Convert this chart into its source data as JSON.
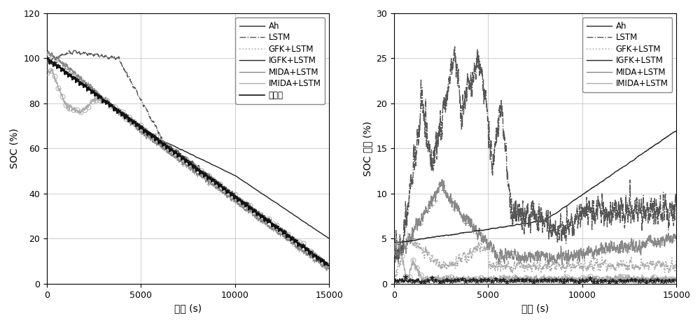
{
  "fig_width": 10.0,
  "fig_height": 4.62,
  "dpi": 100,
  "bg_color": "#ffffff",
  "xlabel": "时间 (s)",
  "left_ylabel": "SOC (%)",
  "right_ylabel": "SOC 误差 (%)",
  "left_ylim": [
    0,
    120
  ],
  "right_ylim": [
    0,
    30
  ],
  "left_yticks": [
    0,
    20,
    40,
    60,
    80,
    100,
    120
  ],
  "right_yticks": [
    0,
    5,
    10,
    15,
    20,
    25,
    30
  ],
  "xlim": [
    0,
    15000
  ],
  "xticks": [
    0,
    5000,
    10000,
    15000
  ],
  "legend_labels": [
    "Ah",
    "LSTM",
    "GFK+LSTM",
    "IGFK+LSTM",
    "MIDA+LSTM",
    "IMIDA+LSTM",
    "参考値"
  ],
  "colors": {
    "Ah": "#222222",
    "LSTM": "#555555",
    "GFK": "#aaaaaa",
    "IGFK": "#222222",
    "MIDA": "#888888",
    "IMIDA": "#aaaaaa",
    "ref": "#111111"
  },
  "seed": 42
}
